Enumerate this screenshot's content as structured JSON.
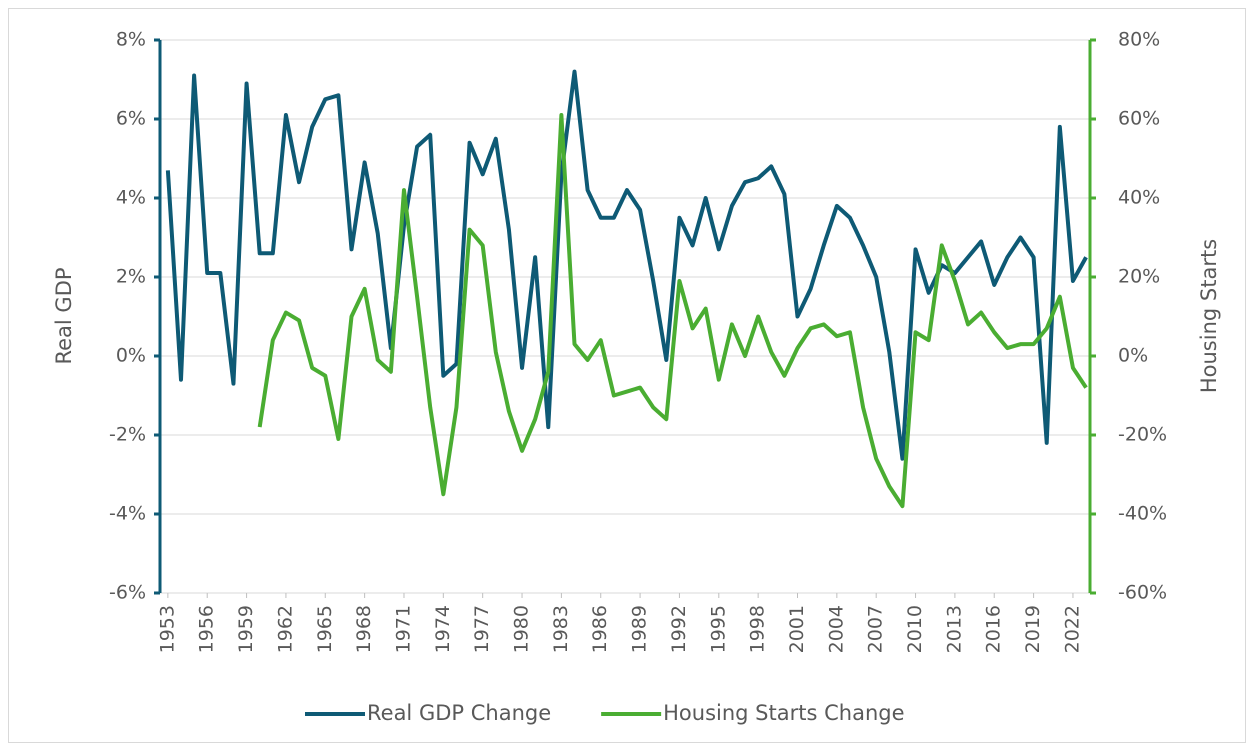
{
  "chart_data": {
    "type": "line",
    "x": [
      1953,
      1954,
      1955,
      1956,
      1957,
      1958,
      1959,
      1960,
      1961,
      1962,
      1963,
      1964,
      1965,
      1966,
      1967,
      1968,
      1969,
      1970,
      1971,
      1972,
      1973,
      1974,
      1975,
      1976,
      1977,
      1978,
      1979,
      1980,
      1981,
      1982,
      1983,
      1984,
      1985,
      1986,
      1987,
      1988,
      1989,
      1990,
      1991,
      1992,
      1993,
      1994,
      1995,
      1996,
      1997,
      1998,
      1999,
      2000,
      2001,
      2002,
      2003,
      2004,
      2005,
      2006,
      2007,
      2008,
      2009,
      2010,
      2011,
      2012,
      2013,
      2014,
      2015,
      2016,
      2017,
      2018,
      2019,
      2020,
      2021,
      2022,
      2023
    ],
    "series": [
      {
        "name": "Real GDP Change",
        "color": "#0e5a75",
        "axis": "y",
        "values": [
          4.7,
          -0.6,
          7.1,
          2.1,
          2.1,
          -0.7,
          6.9,
          2.6,
          2.6,
          6.1,
          4.4,
          5.8,
          6.5,
          6.6,
          2.7,
          4.9,
          3.1,
          0.2,
          3.3,
          5.3,
          5.6,
          -0.5,
          -0.2,
          5.4,
          4.6,
          5.5,
          3.2,
          -0.3,
          2.5,
          -1.8,
          4.6,
          7.2,
          4.2,
          3.5,
          3.5,
          4.2,
          3.7,
          1.9,
          -0.1,
          3.5,
          2.8,
          4.0,
          2.7,
          3.8,
          4.4,
          4.5,
          4.8,
          4.1,
          1.0,
          1.7,
          2.8,
          3.8,
          3.5,
          2.8,
          2.0,
          0.1,
          -2.6,
          2.7,
          1.6,
          2.3,
          2.1,
          2.5,
          2.9,
          1.8,
          2.5,
          3.0,
          2.5,
          -2.2,
          5.8,
          1.9,
          2.5
        ]
      },
      {
        "name": "Housing Starts Change",
        "color": "#4aad32",
        "axis": "y2",
        "values": [
          null,
          null,
          null,
          null,
          null,
          null,
          null,
          -18,
          4,
          11,
          9,
          -3,
          -5,
          -21,
          10,
          17,
          -1,
          -4,
          42,
          15,
          -13,
          -35,
          -13,
          32,
          28,
          1,
          -14,
          -24,
          -16,
          -4,
          61,
          3,
          -1,
          4,
          -10,
          -9,
          -8,
          -13,
          -16,
          19,
          7,
          12,
          -6,
          8,
          0,
          10,
          1,
          -5,
          2,
          7,
          8,
          5,
          6,
          -13,
          -26,
          -33,
          -38,
          6,
          4,
          28,
          19,
          8,
          11,
          6,
          2,
          3,
          3,
          7,
          15,
          -3,
          -8
        ]
      }
    ],
    "xlim": [
      1952.4,
      2023.3
    ],
    "xticks": [
      1953,
      1956,
      1959,
      1962,
      1965,
      1968,
      1971,
      1974,
      1977,
      1980,
      1983,
      1986,
      1989,
      1992,
      1995,
      1998,
      2001,
      2004,
      2007,
      2010,
      2013,
      2016,
      2019,
      2022
    ],
    "ylabel": "Real GDP",
    "y2label": "Housing Starts",
    "ylim": [
      -6,
      8
    ],
    "yticks": [
      {
        "value": -6,
        "label": "-6%"
      },
      {
        "value": -4,
        "label": "-4%"
      },
      {
        "value": -2,
        "label": "-2%"
      },
      {
        "value": 0,
        "label": "0%"
      },
      {
        "value": 2,
        "label": "2%"
      },
      {
        "value": 4,
        "label": "4%"
      },
      {
        "value": 6,
        "label": "6%"
      },
      {
        "value": 8,
        "label": "8%"
      }
    ],
    "y2lim": [
      -60,
      80
    ],
    "y2ticks": [
      {
        "value": -60,
        "label": "-60%"
      },
      {
        "value": -40,
        "label": "-40%"
      },
      {
        "value": -20,
        "label": "-20%"
      },
      {
        "value": 0,
        "label": "0%"
      },
      {
        "value": 20,
        "label": "20%"
      },
      {
        "value": 40,
        "label": "40%"
      },
      {
        "value": 60,
        "label": "60%"
      },
      {
        "value": 80,
        "label": "80%"
      }
    ],
    "grid": true,
    "legend": "bottom"
  }
}
